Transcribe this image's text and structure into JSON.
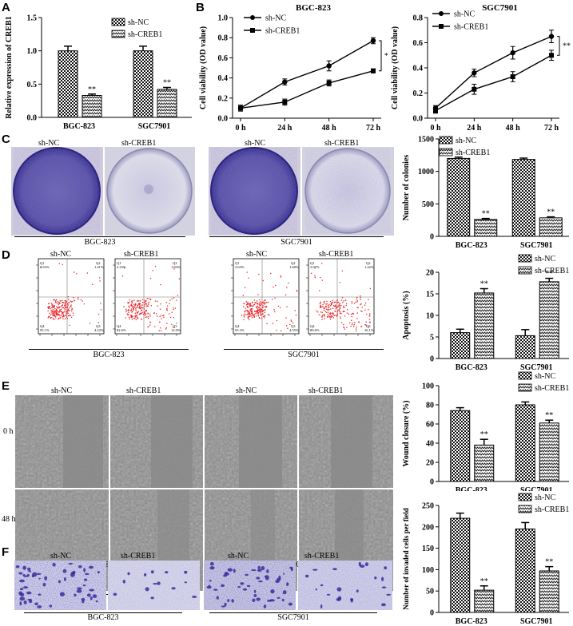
{
  "panels": [
    "A",
    "B",
    "C",
    "D",
    "E",
    "F"
  ],
  "image_labels": {
    "sh_nc": "sh-NC",
    "sh_creb1": "sh-CREB1",
    "bgc": "BGC-823",
    "sgc": "SGC7901",
    "time_0h": "0 h",
    "time_48h": "48 h"
  },
  "flow_quadrants": [
    {
      "q1": "Q1",
      "q2": "Q2",
      "q3": "Q3",
      "q4": "Q4",
      "v1": "0.33%",
      "v2": "1.41%",
      "v3": "4.22%",
      "v4": "95.1%"
    },
    {
      "q1": "Q1",
      "q2": "Q2",
      "q3": "Q3",
      "q4": "Q4",
      "v1": "2.23%",
      "v2": "1.83%",
      "v3": "12.0%",
      "v4": "82.6%"
    },
    {
      "q1": "Q1",
      "q2": "Q2",
      "q3": "Q3",
      "q4": "Q4",
      "v1": "2.63%",
      "v2": "1.68%",
      "v3": "4.55%",
      "v4": "93.3%"
    },
    {
      "q1": "Q1",
      "q2": "Q2",
      "q3": "Q3",
      "q4": "Q4",
      "v1": "3.07%",
      "v2": "1.42%",
      "v3": "16.1%",
      "v4": "80.6%"
    }
  ],
  "colors": {
    "stain": "#4a3ea0",
    "dots": "#e8262a",
    "micro": "#8a8a8a"
  },
  "chart_data": [
    {
      "id": "A",
      "type": "bar",
      "title": "",
      "ylabel": "Relative expression of CREB1",
      "categories": [
        "BGC-823",
        "SGC7901"
      ],
      "ylim": [
        0,
        1.5
      ],
      "yticks": [
        "0.0",
        "0.5",
        "1.0",
        "1.5"
      ],
      "legend_position": "top-right",
      "sig": [
        "**",
        "**"
      ],
      "series": [
        {
          "name": "sh-NC",
          "values": [
            1.0,
            1.0
          ],
          "err": [
            0.07,
            0.07
          ]
        },
        {
          "name": "sh-CREB1",
          "values": [
            0.33,
            0.42
          ],
          "err": [
            0.02,
            0.03
          ]
        }
      ]
    },
    {
      "id": "B1",
      "type": "line",
      "title": "BGC-823",
      "ylabel": "Cell viability (OD value)",
      "x": [
        "0 h",
        "24 h",
        "48 h",
        "72 h"
      ],
      "ylim": [
        0,
        1.0
      ],
      "yticks": [
        "0.0",
        "0.2",
        "0.4",
        "0.6",
        "0.8",
        "1.0"
      ],
      "sig": "**",
      "legend_position": "top-left",
      "series": [
        {
          "name": "sh-NC",
          "values": [
            0.1,
            0.36,
            0.52,
            0.77
          ],
          "err": [
            0.03,
            0.03,
            0.05,
            0.03
          ]
        },
        {
          "name": "sh-CREB1",
          "values": [
            0.1,
            0.16,
            0.35,
            0.47
          ],
          "err": [
            0.02,
            0.03,
            0.03,
            0.02
          ]
        }
      ]
    },
    {
      "id": "B2",
      "type": "line",
      "title": "SGC7901",
      "ylabel": "Cell viability (OD value)",
      "x": [
        "0 h",
        "24 h",
        "48 h",
        "72 h"
      ],
      "ylim": [
        0,
        0.8
      ],
      "yticks": [
        "0.0",
        "0.2",
        "0.4",
        "0.6",
        "0.8"
      ],
      "sig": "**",
      "legend_position": "top-left",
      "series": [
        {
          "name": "sh-NC",
          "values": [
            0.08,
            0.36,
            0.52,
            0.65
          ],
          "err": [
            0.02,
            0.03,
            0.05,
            0.05
          ]
        },
        {
          "name": "sh-CREB1",
          "values": [
            0.06,
            0.23,
            0.33,
            0.5
          ],
          "err": [
            0.02,
            0.04,
            0.04,
            0.04
          ]
        }
      ]
    },
    {
      "id": "C",
      "type": "bar",
      "title": "",
      "ylabel": "Number of colonies",
      "categories": [
        "BGC-823",
        "SGC7901"
      ],
      "ylim": [
        0,
        1500
      ],
      "yticks": [
        "0",
        "500",
        "1000",
        "1500"
      ],
      "legend_position": "top-left",
      "sig": [
        "**",
        "**"
      ],
      "series": [
        {
          "name": "sh-NC",
          "values": [
            1200,
            1185
          ],
          "err": [
            20,
            20
          ]
        },
        {
          "name": "sh-CREB1",
          "values": [
            260,
            285
          ],
          "err": [
            15,
            15
          ]
        }
      ]
    },
    {
      "id": "D",
      "type": "bar",
      "title": "",
      "ylabel": "Apoptosis (%)",
      "categories": [
        "BGC-823",
        "SGC7901"
      ],
      "ylim": [
        0,
        20
      ],
      "yticks": [
        "0",
        "5",
        "10",
        "15",
        "20"
      ],
      "legend_position": "top-right",
      "sig": [
        "**",
        "**"
      ],
      "series": [
        {
          "name": "sh-NC",
          "values": [
            6.0,
            5.3
          ],
          "err": [
            0.8,
            1.4
          ]
        },
        {
          "name": "sh-CREB1",
          "values": [
            15.2,
            17.8
          ],
          "err": [
            1.0,
            0.8
          ]
        }
      ]
    },
    {
      "id": "E",
      "type": "bar",
      "title": "",
      "ylabel": "Wound closure (%)",
      "categories": [
        "BGC-823",
        "SGC7901"
      ],
      "ylim": [
        0,
        100
      ],
      "yticks": [
        "0",
        "20",
        "40",
        "60",
        "80",
        "100"
      ],
      "legend_position": "top-right",
      "sig": [
        "**",
        "**"
      ],
      "series": [
        {
          "name": "sh-NC",
          "values": [
            74,
            80
          ],
          "err": [
            3,
            3
          ]
        },
        {
          "name": "sh-CREB1",
          "values": [
            38,
            61
          ],
          "err": [
            6,
            3
          ]
        }
      ]
    },
    {
      "id": "F",
      "type": "bar",
      "title": "",
      "ylabel": "Number of invaded cells per field",
      "categories": [
        "BGC-823",
        "SGC7901"
      ],
      "ylim": [
        0,
        250
      ],
      "yticks": [
        "0",
        "50",
        "100",
        "150",
        "200",
        "250"
      ],
      "legend_position": "top-right",
      "sig": [
        "**",
        "**"
      ],
      "series": [
        {
          "name": "sh-NC",
          "values": [
            220,
            195
          ],
          "err": [
            12,
            15
          ]
        },
        {
          "name": "sh-CREB1",
          "values": [
            52,
            97
          ],
          "err": [
            10,
            10
          ]
        }
      ]
    }
  ]
}
